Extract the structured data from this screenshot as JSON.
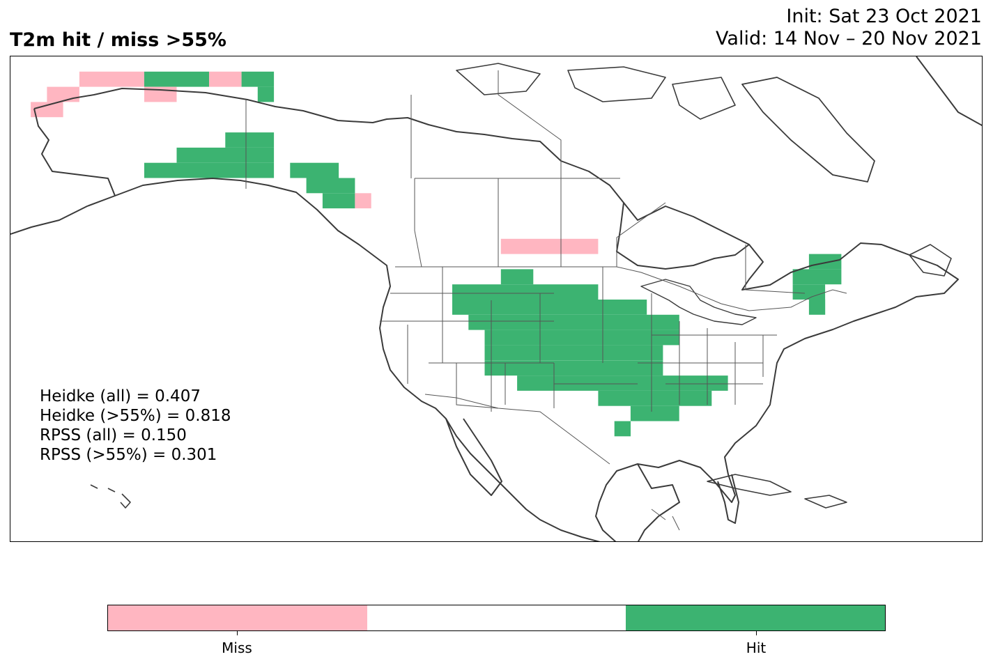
{
  "title": "T2m hit / miss  >55%",
  "init": "Init: Sat 23 Oct 2021",
  "valid": "Valid: 14 Nov – 20 Nov 2021",
  "stats": [
    "Heidke (all) = 0.407",
    "Heidke (>55%) = 0.818",
    "RPSS (all) = 0.150",
    "RPSS (>55%) = 0.301"
  ],
  "colors": {
    "miss": "#ffb6c1",
    "neutral": "#ffffff",
    "hit": "#3cb371",
    "coast": "#3a3a3a",
    "border": "#555555"
  },
  "colorbar": {
    "miss_label": "Miss",
    "hit_label": "Hit"
  },
  "map": {
    "region": "North America",
    "projection": "PlateCarree",
    "grid_cells": [
      {
        "cat": "miss",
        "lon": [
          -168,
          -164
        ],
        "lat": [
          66,
          68
        ]
      },
      {
        "cat": "miss",
        "lon": [
          -166,
          -162
        ],
        "lat": [
          68,
          70
        ]
      },
      {
        "cat": "miss",
        "lon": [
          -162,
          -154
        ],
        "lat": [
          70,
          72
        ]
      },
      {
        "cat": "hit",
        "lon": [
          -154,
          -146
        ],
        "lat": [
          70,
          72
        ]
      },
      {
        "cat": "miss",
        "lon": [
          -146,
          -142
        ],
        "lat": [
          70,
          72
        ]
      },
      {
        "cat": "hit",
        "lon": [
          -142,
          -138
        ],
        "lat": [
          70,
          72
        ]
      },
      {
        "cat": "miss",
        "lon": [
          -154,
          -150
        ],
        "lat": [
          68,
          70
        ]
      },
      {
        "cat": "hit",
        "lon": [
          -140,
          -138
        ],
        "lat": [
          68,
          70
        ]
      },
      {
        "cat": "hit",
        "lon": [
          -144,
          -138
        ],
        "lat": [
          62,
          64
        ]
      },
      {
        "cat": "hit",
        "lon": [
          -150,
          -138
        ],
        "lat": [
          60,
          62
        ]
      },
      {
        "cat": "hit",
        "lon": [
          -154,
          -138
        ],
        "lat": [
          58,
          60
        ]
      },
      {
        "cat": "hit",
        "lon": [
          -136,
          -130
        ],
        "lat": [
          58,
          60
        ]
      },
      {
        "cat": "hit",
        "lon": [
          -134,
          -128
        ],
        "lat": [
          56,
          58
        ]
      },
      {
        "cat": "hit",
        "lon": [
          -132,
          -128
        ],
        "lat": [
          54,
          56
        ]
      },
      {
        "cat": "miss",
        "lon": [
          -128,
          -126
        ],
        "lat": [
          54,
          56
        ]
      },
      {
        "cat": "miss",
        "lon": [
          -110,
          -98
        ],
        "lat": [
          48,
          50
        ]
      },
      {
        "cat": "hit",
        "lon": [
          -110,
          -106
        ],
        "lat": [
          44,
          46
        ]
      },
      {
        "cat": "hit",
        "lon": [
          -116,
          -98
        ],
        "lat": [
          42,
          44
        ]
      },
      {
        "cat": "hit",
        "lon": [
          -116,
          -92
        ],
        "lat": [
          40,
          42
        ]
      },
      {
        "cat": "hit",
        "lon": [
          -114,
          -88
        ],
        "lat": [
          38,
          40
        ]
      },
      {
        "cat": "hit",
        "lon": [
          -112,
          -88
        ],
        "lat": [
          36,
          38
        ]
      },
      {
        "cat": "hit",
        "lon": [
          -112,
          -90
        ],
        "lat": [
          34,
          36
        ]
      },
      {
        "cat": "hit",
        "lon": [
          -112,
          -90
        ],
        "lat": [
          32,
          34
        ]
      },
      {
        "cat": "hit",
        "lon": [
          -108,
          -82
        ],
        "lat": [
          30,
          32
        ]
      },
      {
        "cat": "hit",
        "lon": [
          -98,
          -84
        ],
        "lat": [
          28,
          30
        ]
      },
      {
        "cat": "hit",
        "lon": [
          -94,
          -88
        ],
        "lat": [
          26,
          28
        ]
      },
      {
        "cat": "hit",
        "lon": [
          -96,
          -94
        ],
        "lat": [
          24,
          26
        ]
      },
      {
        "cat": "hit",
        "lon": [
          -72,
          -68
        ],
        "lat": [
          46,
          48
        ]
      },
      {
        "cat": "hit",
        "lon": [
          -74,
          -68
        ],
        "lat": [
          44,
          46
        ]
      },
      {
        "cat": "hit",
        "lon": [
          -74,
          -70
        ],
        "lat": [
          42,
          44
        ]
      },
      {
        "cat": "hit",
        "lon": [
          -72,
          -70
        ],
        "lat": [
          40,
          42
        ]
      }
    ]
  }
}
